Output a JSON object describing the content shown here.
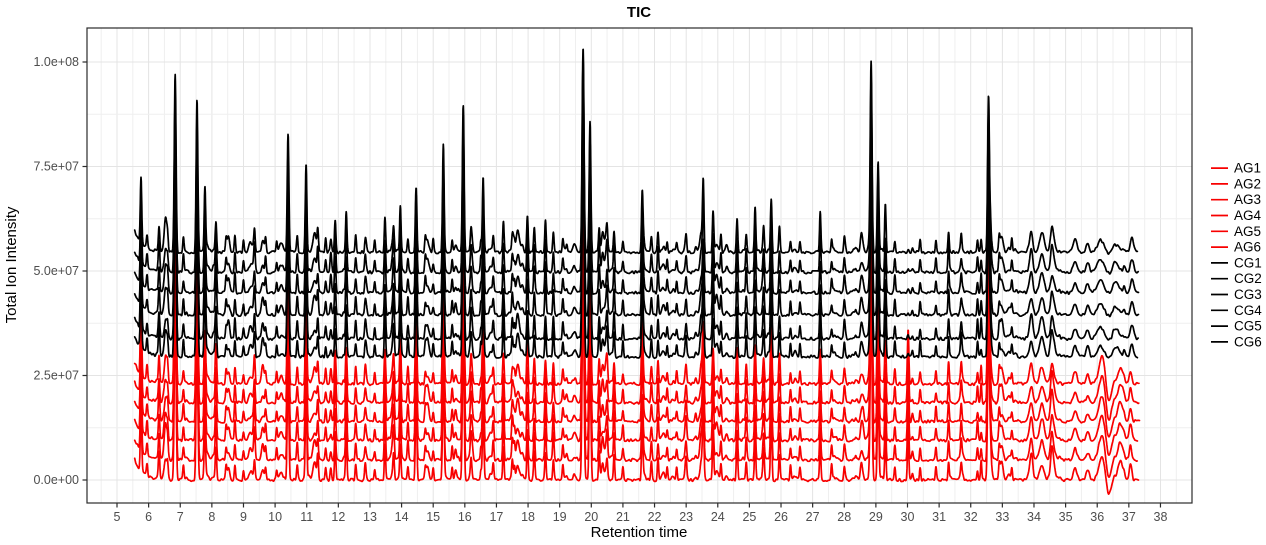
{
  "chart_data": {
    "type": "line",
    "title": "TIC",
    "xlabel": "Retention time",
    "ylabel": "Total Ion Intensity",
    "x_ticks": [
      5,
      6,
      7,
      8,
      9,
      10,
      11,
      12,
      13,
      14,
      15,
      16,
      17,
      18,
      19,
      20,
      21,
      22,
      23,
      24,
      25,
      26,
      27,
      28,
      29,
      30,
      31,
      32,
      33,
      34,
      35,
      36,
      37,
      38
    ],
    "y_ticks": [
      {
        "value": 0.0,
        "label": "0.0e+00"
      },
      {
        "value": 2.5,
        "label": "2.5e+07"
      },
      {
        "value": 5.0,
        "label": "5.0e+07"
      },
      {
        "value": 7.5,
        "label": "7.5e+07"
      },
      {
        "value": 10.0,
        "label": "1.0e+08"
      }
    ],
    "xlim": [
      4.05,
      39.0
    ],
    "ylim_e7": [
      -0.55,
      10.81
    ],
    "x_minor_step": 0.5,
    "y_minor_step_e7": 1.25,
    "grid": {
      "major": true,
      "minor": true
    },
    "legend_position": "right",
    "intensity_unit": 10000000,
    "trace_x_range": [
      5.56,
      37.3
    ],
    "series": [
      {
        "name": "AG1",
        "group": "AG",
        "color": "#F80000",
        "baseline": 0.0
      },
      {
        "name": "AG2",
        "group": "AG",
        "color": "#F80000",
        "baseline": 0.48
      },
      {
        "name": "AG3",
        "group": "AG",
        "color": "#F80000",
        "baseline": 0.95
      },
      {
        "name": "AG4",
        "group": "AG",
        "color": "#F80000",
        "baseline": 1.4
      },
      {
        "name": "AG5",
        "group": "AG",
        "color": "#F80000",
        "baseline": 1.85
      },
      {
        "name": "AG6",
        "group": "AG",
        "color": "#F80000",
        "baseline": 2.3
      },
      {
        "name": "CG1",
        "group": "CG",
        "color": "#000000",
        "baseline": 2.95
      },
      {
        "name": "CG2",
        "group": "CG",
        "color": "#000000",
        "baseline": 3.38
      },
      {
        "name": "CG3",
        "group": "CG",
        "color": "#000000",
        "baseline": 3.95
      },
      {
        "name": "CG4",
        "group": "CG",
        "color": "#000000",
        "baseline": 4.48
      },
      {
        "name": "CG5",
        "group": "CG",
        "color": "#000000",
        "baseline": 4.97
      },
      {
        "name": "CG6",
        "group": "CG",
        "color": "#000000",
        "baseline": 5.45
      }
    ],
    "peaks_note": "format [retention_time, amplitude_in_1e7_above_baseline, optional_width, optional_group]",
    "peaks": [
      [
        5.76,
        1.6
      ],
      [
        5.95,
        0.3
      ],
      [
        6.33,
        0.6
      ],
      [
        6.6,
        0.3
      ],
      [
        6.84,
        4.2
      ],
      [
        7.1,
        0.35
      ],
      [
        7.53,
        3.55
      ],
      [
        7.78,
        1.3
      ],
      [
        8.13,
        0.85
      ],
      [
        8.45,
        0.3
      ],
      [
        8.73,
        0.45
      ],
      [
        9.0,
        0.25
      ],
      [
        9.35,
        0.35
      ],
      [
        9.7,
        0.3
      ],
      [
        10.05,
        0.25
      ],
      [
        10.41,
        2.8
      ],
      [
        10.7,
        0.4
      ],
      [
        10.98,
        2.05
      ],
      [
        11.35,
        0.45
      ],
      [
        11.6,
        0.3
      ],
      [
        11.9,
        0.8
      ],
      [
        12.25,
        0.95
      ],
      [
        12.55,
        0.35
      ],
      [
        12.85,
        0.3
      ],
      [
        13.15,
        0.25
      ],
      [
        13.48,
        0.65
      ],
      [
        13.75,
        0.45
      ],
      [
        13.96,
        1.0
      ],
      [
        14.2,
        0.4
      ],
      [
        14.46,
        1.9
      ],
      [
        14.75,
        0.3
      ],
      [
        15.0,
        0.25
      ],
      [
        15.32,
        2.5
      ],
      [
        15.6,
        0.35
      ],
      [
        15.95,
        3.5
      ],
      [
        16.2,
        0.5
      ],
      [
        16.58,
        1.7
      ],
      [
        16.9,
        0.35
      ],
      [
        17.22,
        0.8
      ],
      [
        17.5,
        0.4
      ],
      [
        17.98,
        0.85
      ],
      [
        18.2,
        0.5
      ],
      [
        18.55,
        0.7
      ],
      [
        18.8,
        0.55
      ],
      [
        19.1,
        0.3
      ],
      [
        19.74,
        4.9
      ],
      [
        19.96,
        3.15
      ],
      [
        20.25,
        0.65
      ],
      [
        20.5,
        0.4
      ],
      [
        20.72,
        0.55
      ],
      [
        21.0,
        0.3
      ],
      [
        21.61,
        1.25
      ],
      [
        21.9,
        0.4
      ],
      [
        22.11,
        0.5
      ],
      [
        22.4,
        0.3
      ],
      [
        22.7,
        0.25
      ],
      [
        23.0,
        0.3
      ],
      [
        23.54,
        1.4
      ],
      [
        23.85,
        0.95
      ],
      [
        24.1,
        0.4
      ],
      [
        24.61,
        0.85
      ],
      [
        24.9,
        0.5
      ],
      [
        25.18,
        0.95
      ],
      [
        25.45,
        0.5
      ],
      [
        25.69,
        1.45
      ],
      [
        25.95,
        0.6
      ],
      [
        26.3,
        0.3
      ],
      [
        26.6,
        0.3
      ],
      [
        27.24,
        0.85
      ],
      [
        27.6,
        0.3
      ],
      [
        28.0,
        0.3
      ],
      [
        28.85,
        4.4
      ],
      [
        29.07,
        2.2
      ],
      [
        29.3,
        1.0
      ],
      [
        29.6,
        0.35
      ],
      [
        30.02,
        1.15,
        0.022,
        "AG"
      ],
      [
        30.4,
        0.3
      ],
      [
        30.9,
        0.3
      ],
      [
        31.3,
        0.55
      ],
      [
        31.7,
        0.35
      ],
      [
        32.56,
        3.55
      ],
      [
        32.9,
        0.3
      ],
      [
        33.3,
        0.25
      ],
      [
        33.9,
        0.3,
        0.06
      ],
      [
        34.25,
        0.45,
        0.07
      ],
      [
        34.6,
        0.3,
        0.07
      ],
      [
        35.3,
        0.25,
        0.06
      ],
      [
        35.7,
        0.2,
        0.05
      ],
      [
        36.16,
        0.6,
        0.1,
        "AG"
      ],
      [
        36.35,
        -0.5,
        0.08,
        "AG"
      ],
      [
        36.73,
        0.45,
        0.08,
        "AG"
      ],
      [
        37.05,
        0.35,
        0.04,
        "AG"
      ],
      [
        36.1,
        0.25,
        0.1,
        "CG"
      ],
      [
        36.6,
        0.2,
        0.08,
        "CG"
      ],
      [
        37.1,
        0.3,
        0.05,
        "CG"
      ]
    ],
    "start_transient": {
      "amplitude": 0.5,
      "tau": 0.25
    },
    "noise": {
      "seed": 7,
      "small_peak_count": 95,
      "wiggle_amplitude": 0.07
    }
  },
  "colors": {
    "ag_trace": "#F80000",
    "cg_trace": "#000000",
    "grid_major": "#e4e4e4",
    "grid_minor": "#efefef",
    "panel_border": "#2b2b2b",
    "tick_label": "#4d4d4d"
  }
}
